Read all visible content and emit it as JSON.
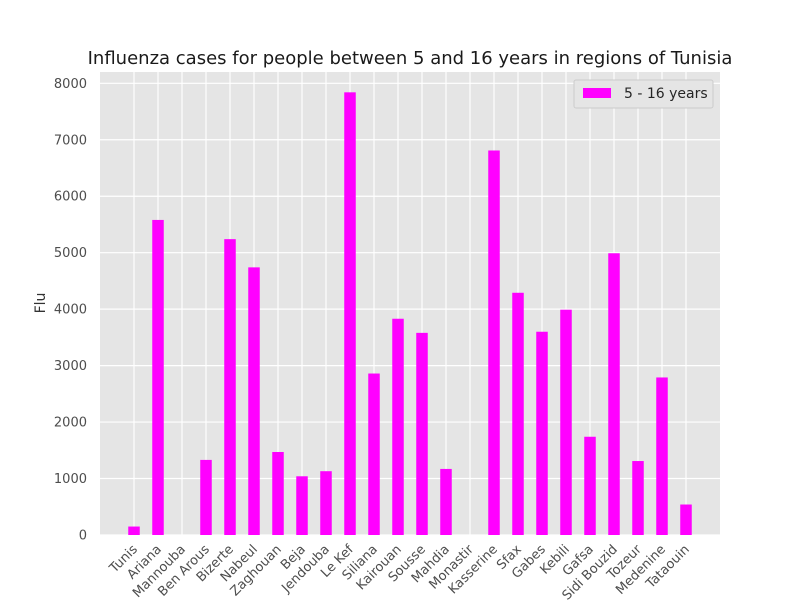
{
  "chart_data": {
    "type": "bar",
    "title": "Influenza cases for people between 5 and 16 years in regions of Tunisia",
    "xlabel": "",
    "ylabel": "Flu",
    "ylim": [
      0,
      8200
    ],
    "yticks": [
      0,
      1000,
      2000,
      3000,
      4000,
      5000,
      6000,
      7000,
      8000
    ],
    "grid": true,
    "legend_position": "top-right",
    "categories": [
      "Tunis",
      "Ariana",
      "Mannouba",
      "Ben Arous",
      "Bizerte",
      "Nabeul",
      "Zaghouan",
      "Beja",
      "Jendouba",
      "Le Kef",
      "Siliana",
      "Kairouan",
      "Sousse",
      "Mahdia",
      "Monastir",
      "Kasserine",
      "Sfax",
      "Gabes",
      "Kebili",
      "Gafsa",
      "Sidi Bouzid",
      "Tozeur",
      "Medenine",
      "Tataouin"
    ],
    "series": [
      {
        "name": "5 - 16 years",
        "color": "#ff00ff",
        "values": [
          150,
          5580,
          0,
          1330,
          5240,
          4740,
          1470,
          1040,
          1130,
          7840,
          2860,
          3830,
          3580,
          1170,
          0,
          6810,
          4290,
          3600,
          3990,
          1740,
          4990,
          1310,
          2790,
          540
        ]
      }
    ]
  }
}
